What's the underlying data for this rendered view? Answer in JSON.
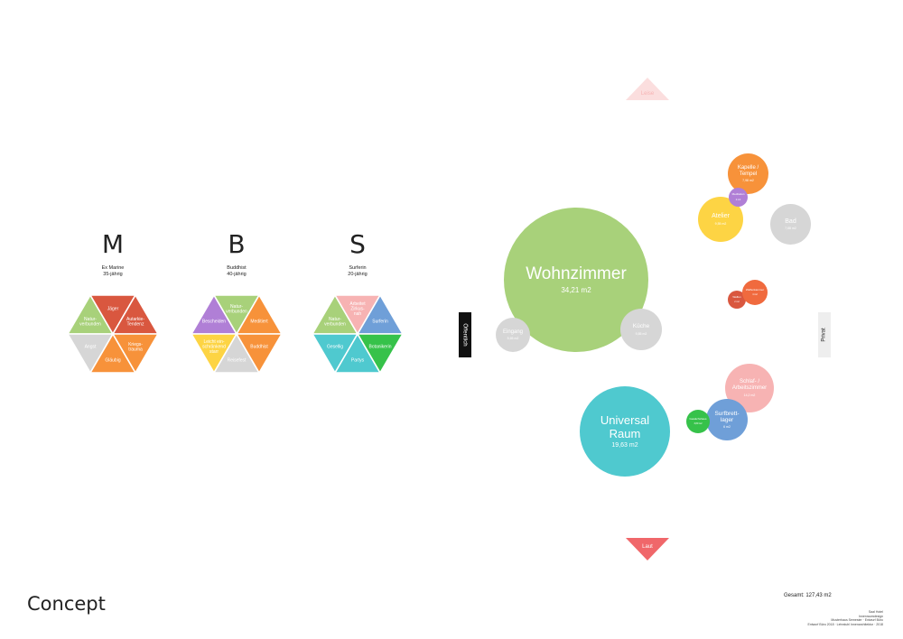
{
  "title": "Concept",
  "total": "Gesamt: 127,43 m2",
  "footer_lines": [
    "Saal Hotel",
    "Innenraumdesign",
    "Musterhaus Semester · Entwurf Büro",
    "Entwurf Büro 2018 · Lehrstuhl Innenarchitektur · 2018"
  ],
  "personas": [
    {
      "letter": "M",
      "desc1": "Ex Marine",
      "desc2": "35-jährig",
      "triangles": [
        {
          "label": "Natur-\nverbunden",
          "color": "#a8d17a"
        },
        {
          "label": "Jäger",
          "color": "#d9573f"
        },
        {
          "label": "Autarkie-\nTendenz",
          "color": "#d9573f"
        },
        {
          "label": "Angst",
          "color": "#d6d6d6"
        },
        {
          "label": "Gläubig",
          "color": "#f7923a"
        },
        {
          "label": "Kriegs-\ntrauma",
          "color": "#f7923a"
        }
      ]
    },
    {
      "letter": "B",
      "desc1": "Buddhist",
      "desc2": "40-jährig",
      "triangles": [
        {
          "label": "Bescheiden",
          "color": "#b07fd6"
        },
        {
          "label": "Natur-\nverbunden",
          "color": "#a8d17a"
        },
        {
          "label": "Meditiert",
          "color": "#f7923a"
        },
        {
          "label": "Leicht ein-\nschränkend\nstarr",
          "color": "#fdd444"
        },
        {
          "label": "Reisefest",
          "color": "#d6d6d6"
        },
        {
          "label": "Buddhist",
          "color": "#f7923a"
        }
      ]
    },
    {
      "letter": "S",
      "desc1": "Surferin",
      "desc2": "20-jährig",
      "triangles": [
        {
          "label": "Natur-\nverbunden",
          "color": "#a8d17a"
        },
        {
          "label": "Arbeitet\nZirkus-\nnah",
          "color": "#f7b3b3"
        },
        {
          "label": "Surferin",
          "color": "#6f9fd8"
        },
        {
          "label": "Gesellig",
          "color": "#4fc9cf"
        },
        {
          "label": "Partys",
          "color": "#4fc9cf"
        },
        {
          "label": "Botanikerin",
          "color": "#36c24a"
        }
      ]
    }
  ],
  "axis": {
    "public": "Öffentlich",
    "private": "Privat",
    "quiet": "Leise",
    "loud": "Laut"
  },
  "colors": {
    "loud": "#f0676a",
    "quiet": "#fbdede",
    "dark": "#111111"
  },
  "rooms": [
    {
      "name": "Wohnzimmer",
      "area": "34,21 m2",
      "color": "#a8d17a"
    },
    {
      "name": "Universal\nRaum",
      "area": "19,63 m2",
      "color": "#4fc9cf"
    },
    {
      "name": "Eingang",
      "area": "5,65 m2",
      "color": "#d6d6d6"
    },
    {
      "name": "Küche",
      "area": "9,85 m2",
      "color": "#d6d6d6"
    },
    {
      "name": "Kapelle /\nTempel",
      "area": "7,98 m2",
      "color": "#f7923a"
    },
    {
      "name": "Atelier",
      "area": "9,55 m2",
      "color": "#fdd444"
    },
    {
      "name": "Bad",
      "area": "7,68 m2",
      "color": "#d6d6d6"
    },
    {
      "name": "Meditation",
      "area": "2 m2",
      "color": "#b07fd6"
    },
    {
      "name": "Waffen",
      "area": "2 m2",
      "color": "#d9573f"
    },
    {
      "name": "Waffenkammer",
      "area": "4 m2",
      "color": "#f06a3e"
    },
    {
      "name": "Schlaf- /\nArbeitszimmer",
      "area": "14,2 m2",
      "color": "#f7b3b3"
    },
    {
      "name": "Surfbrett-\nlager",
      "area": "6 m2",
      "color": "#6f9fd8"
    },
    {
      "name": "Gewächshaus",
      "area": "3,89 m2",
      "color": "#36c24a"
    }
  ]
}
